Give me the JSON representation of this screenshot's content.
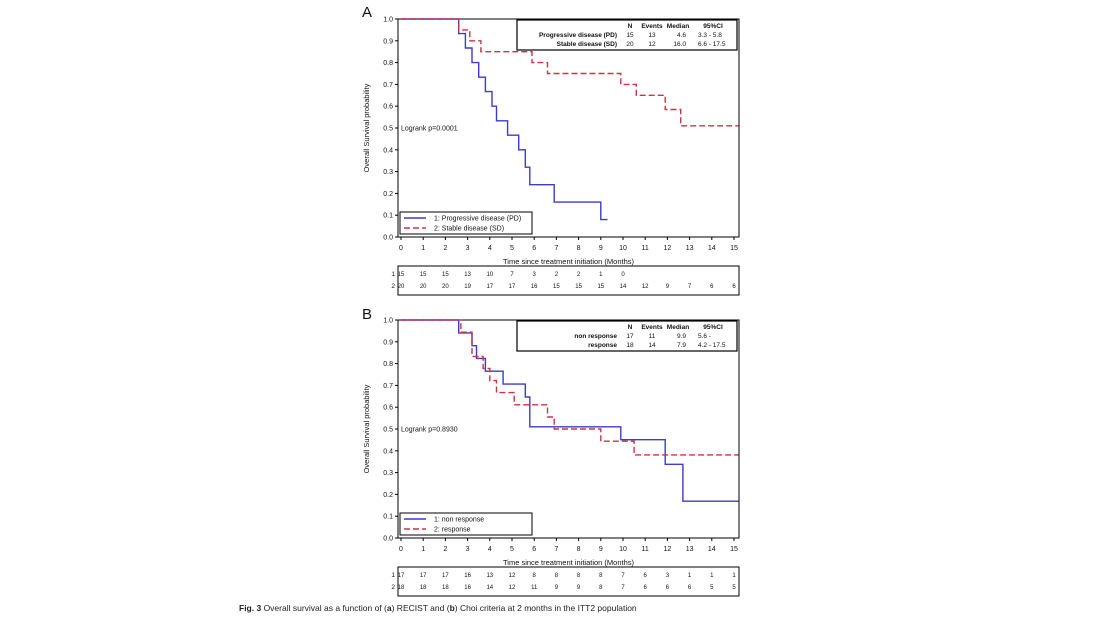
{
  "caption": {
    "label": "Fig. 3",
    "p1": " Overall survival as a function of (",
    "a": "a",
    "p2": ") RECIST and (",
    "b": "b",
    "p3": ") Choi criteria at 2 months in the ITT2 population"
  },
  "chart_data": [
    {
      "type": "line",
      "panel": "A",
      "xlabel": "Time since treatment initiation (Months)",
      "ylabel": "Overall Survival probability",
      "xlim": [
        0,
        15
      ],
      "ylim": [
        0,
        1
      ],
      "xticks": [
        "0",
        "1",
        "2",
        "3",
        "4",
        "5",
        "6",
        "7",
        "8",
        "9",
        "10",
        "11",
        "12",
        "13",
        "14",
        "15"
      ],
      "yticks": [
        "0.0",
        "0.1",
        "0.2",
        "0.3",
        "0.4",
        "0.5",
        "0.6",
        "0.7",
        "0.8",
        "0.9",
        "1.0"
      ],
      "annotation": "Logrank p=0.0001",
      "legend": [
        "1: Progressive disease (PD)",
        "2: Stable disease (SD)"
      ],
      "stats_header": [
        "N",
        "Events",
        "Median",
        "95%CI"
      ],
      "stats_rows": [
        {
          "label": "Progressive disease (PD)",
          "n": "15",
          "events": "13",
          "median": "4.6",
          "ci": "3.3 -   5.8"
        },
        {
          "label": "Stable disease (SD)",
          "n": "20",
          "events": "12",
          "median": "16.0",
          "ci": "6.6 -  17.5"
        }
      ],
      "series": [
        {
          "name": "1: Progressive disease (PD)",
          "color": "#3b3bcc",
          "dash": false,
          "x": [
            0,
            2.6,
            2.6,
            2.9,
            2.9,
            3.2,
            3.2,
            3.5,
            3.5,
            3.8,
            3.8,
            4.1,
            4.1,
            4.3,
            4.3,
            4.8,
            4.8,
            5.3,
            5.3,
            5.6,
            5.6,
            5.8,
            5.8,
            6.9,
            6.9,
            9.0,
            9.0,
            9.3
          ],
          "y": [
            1.0,
            1.0,
            0.933,
            0.933,
            0.867,
            0.867,
            0.8,
            0.8,
            0.733,
            0.733,
            0.667,
            0.667,
            0.6,
            0.6,
            0.533,
            0.533,
            0.467,
            0.467,
            0.4,
            0.4,
            0.32,
            0.32,
            0.24,
            0.24,
            0.16,
            0.16,
            0.08,
            0.08
          ]
        },
        {
          "name": "2: Stable disease (SD)",
          "color": "#cc3344",
          "dash": true,
          "x": [
            0,
            2.6,
            2.6,
            3.1,
            3.1,
            3.6,
            3.6,
            5.9,
            5.9,
            6.6,
            6.6,
            9.9,
            9.9,
            10.6,
            10.6,
            11.9,
            11.9,
            12.6,
            12.6,
            15.2
          ],
          "y": [
            1.0,
            1.0,
            0.95,
            0.95,
            0.9,
            0.9,
            0.85,
            0.85,
            0.8,
            0.8,
            0.75,
            0.75,
            0.7,
            0.7,
            0.65,
            0.65,
            0.585,
            0.585,
            0.51,
            0.51
          ]
        }
      ],
      "at_risk": [
        {
          "row": "1",
          "values": [
            "15",
            "15",
            "15",
            "13",
            "10",
            "7",
            "3",
            "2",
            "2",
            "1",
            "0"
          ]
        },
        {
          "row": "2",
          "values": [
            "20",
            "20",
            "20",
            "19",
            "17",
            "17",
            "16",
            "15",
            "15",
            "15",
            "14",
            "12",
            "9",
            "7",
            "6",
            "6"
          ]
        }
      ]
    },
    {
      "type": "line",
      "panel": "B",
      "xlabel": "Time since treatment initiation (Months)",
      "ylabel": "Overall Survival probability",
      "xlim": [
        0,
        15
      ],
      "ylim": [
        0,
        1
      ],
      "xticks": [
        "0",
        "1",
        "2",
        "3",
        "4",
        "5",
        "6",
        "7",
        "8",
        "9",
        "10",
        "11",
        "12",
        "13",
        "14",
        "15"
      ],
      "yticks": [
        "0.0",
        "0.1",
        "0.2",
        "0.3",
        "0.4",
        "0.5",
        "0.6",
        "0.7",
        "0.8",
        "0.9",
        "1.0"
      ],
      "annotation": "Logrank p=0.8930",
      "legend": [
        "1: non response",
        "2: response"
      ],
      "stats_header": [
        "N",
        "Events",
        "Median",
        "95%CI"
      ],
      "stats_rows": [
        {
          "label": "non response",
          "n": "17",
          "events": "11",
          "median": "9.9",
          "ci": "5.6 -"
        },
        {
          "label": "response",
          "n": "18",
          "events": "14",
          "median": "7.9",
          "ci": "4.2 -  17.5"
        }
      ],
      "series": [
        {
          "name": "1: non response",
          "color": "#3b3bcc",
          "dash": false,
          "x": [
            0,
            2.6,
            2.6,
            3.2,
            3.2,
            3.4,
            3.4,
            3.8,
            3.8,
            4.6,
            4.6,
            5.6,
            5.6,
            5.8,
            5.8,
            9.9,
            9.9,
            11.9,
            11.9,
            12.7,
            12.7,
            15.2
          ],
          "y": [
            1.0,
            1.0,
            0.941,
            0.941,
            0.882,
            0.882,
            0.824,
            0.824,
            0.765,
            0.765,
            0.706,
            0.706,
            0.647,
            0.647,
            0.51,
            0.51,
            0.451,
            0.451,
            0.338,
            0.338,
            0.169,
            0.169
          ]
        },
        {
          "name": "2: response",
          "color": "#cc3344",
          "dash": true,
          "x": [
            0,
            2.7,
            2.7,
            3.2,
            3.2,
            3.7,
            3.7,
            4.0,
            4.0,
            4.3,
            4.3,
            5.1,
            5.1,
            6.6,
            6.6,
            6.9,
            6.9,
            9.0,
            9.0,
            10.5,
            10.5,
            15.2
          ],
          "y": [
            1.0,
            1.0,
            0.944,
            0.944,
            0.833,
            0.833,
            0.778,
            0.778,
            0.722,
            0.722,
            0.667,
            0.667,
            0.611,
            0.611,
            0.555,
            0.555,
            0.5,
            0.5,
            0.444,
            0.444,
            0.381,
            0.381
          ]
        }
      ],
      "at_risk": [
        {
          "row": "1",
          "values": [
            "17",
            "17",
            "17",
            "16",
            "13",
            "12",
            "8",
            "8",
            "8",
            "8",
            "7",
            "6",
            "3",
            "1",
            "1",
            "1"
          ]
        },
        {
          "row": "2",
          "values": [
            "18",
            "18",
            "18",
            "16",
            "14",
            "12",
            "11",
            "9",
            "9",
            "8",
            "7",
            "6",
            "6",
            "6",
            "5",
            "5"
          ]
        }
      ]
    }
  ]
}
